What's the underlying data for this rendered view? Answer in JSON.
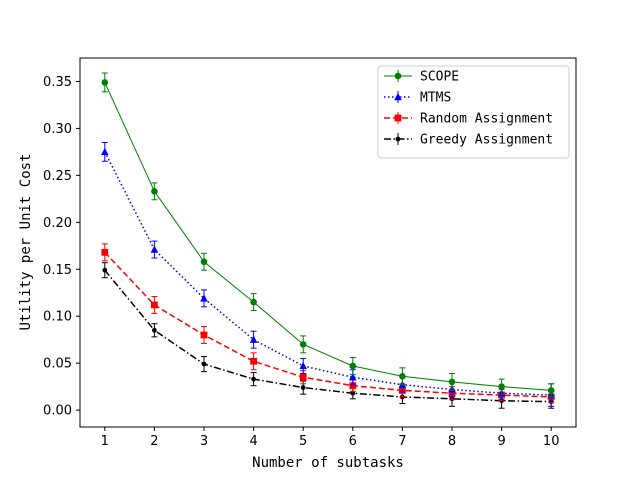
{
  "chart_data": {
    "type": "line",
    "title": "",
    "xlabel": "Number of subtasks",
    "ylabel": "Utility per Unit Cost",
    "x": [
      1,
      2,
      3,
      4,
      5,
      6,
      7,
      8,
      9,
      10
    ],
    "xlim": [
      0.5,
      10.5
    ],
    "ylim": [
      -0.018,
      0.375
    ],
    "x_ticks": [
      1,
      2,
      3,
      4,
      5,
      6,
      7,
      8,
      9,
      10
    ],
    "y_ticks": [
      0.0,
      0.05,
      0.1,
      0.15,
      0.2,
      0.25,
      0.3,
      0.35
    ],
    "x_tick_labels": [
      "1",
      "2",
      "3",
      "4",
      "5",
      "6",
      "7",
      "8",
      "9",
      "10"
    ],
    "y_tick_labels": [
      "0.00",
      "0.05",
      "0.10",
      "0.15",
      "0.20",
      "0.25",
      "0.30",
      "0.35"
    ],
    "grid": false,
    "legend_position": "top-right",
    "series": [
      {
        "name": "SCOPE",
        "color": "#008000",
        "dash": "solid",
        "marker": "circle",
        "values": [
          0.349,
          0.233,
          0.158,
          0.115,
          0.07,
          0.047,
          0.036,
          0.03,
          0.025,
          0.021
        ],
        "errors": [
          0.01,
          0.009,
          0.009,
          0.009,
          0.009,
          0.009,
          0.009,
          0.009,
          0.008,
          0.007
        ]
      },
      {
        "name": "MTMS",
        "color": "#0000ff",
        "dash": "dotted",
        "marker": "triangle",
        "values": [
          0.275,
          0.171,
          0.119,
          0.075,
          0.047,
          0.035,
          0.027,
          0.022,
          0.018,
          0.016
        ],
        "errors": [
          0.01,
          0.009,
          0.009,
          0.009,
          0.008,
          0.008,
          0.008,
          0.008,
          0.007,
          0.012
        ]
      },
      {
        "name": "Random Assignment",
        "color": "#ff0000",
        "dash": "dashed",
        "marker": "square",
        "values": [
          0.168,
          0.112,
          0.08,
          0.052,
          0.035,
          0.026,
          0.021,
          0.018,
          0.016,
          0.014
        ],
        "errors": [
          0.009,
          0.009,
          0.009,
          0.009,
          0.007,
          0.006,
          0.007,
          0.007,
          0.006,
          0.006
        ]
      },
      {
        "name": "Greedy Assignment",
        "color": "#000000",
        "dash": "dashdot",
        "marker": "point",
        "values": [
          0.149,
          0.085,
          0.049,
          0.033,
          0.024,
          0.018,
          0.014,
          0.012,
          0.01,
          0.009
        ],
        "errors": [
          0.008,
          0.007,
          0.008,
          0.007,
          0.007,
          0.006,
          0.007,
          0.008,
          0.008,
          0.007
        ]
      }
    ]
  }
}
